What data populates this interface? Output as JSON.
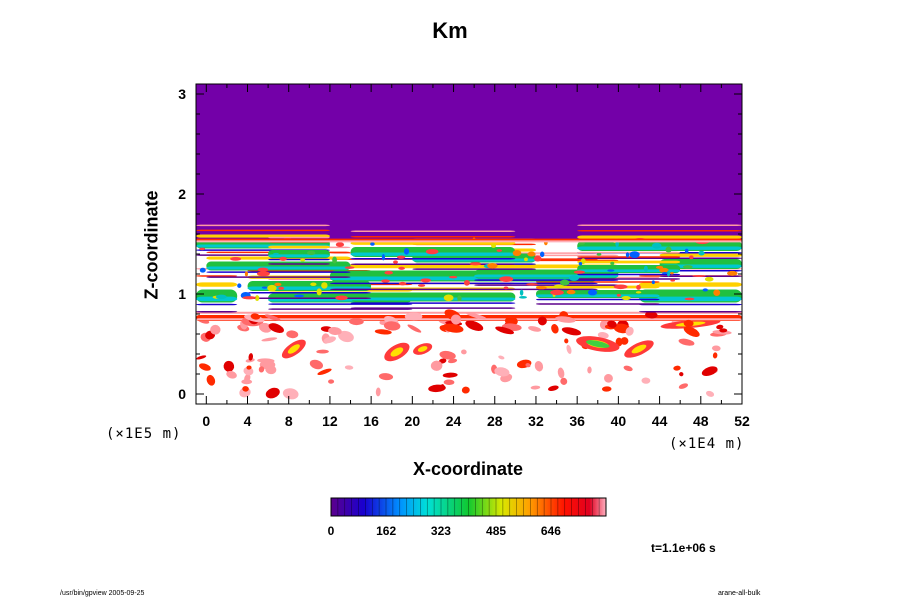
{
  "chart_data": {
    "type": "heatmap",
    "title": "Km",
    "xlabel": "X-coordinate",
    "ylabel": "Z-coordinate",
    "x_scale_note": "(×1E4 m)",
    "y_scale_note": "(×1E5 m)",
    "xlim": [
      -1,
      52
    ],
    "ylim": [
      -0.1,
      3.1
    ],
    "x_ticks": [
      "0",
      "4",
      "8",
      "12",
      "16",
      "20",
      "24",
      "28",
      "32",
      "36",
      "40",
      "44",
      "48",
      "52"
    ],
    "y_ticks": [
      "0",
      "1",
      "2",
      "3"
    ],
    "colorbar": {
      "tick_labels": [
        "0",
        "162",
        "323",
        "485",
        "646"
      ],
      "tick_values": [
        0,
        162,
        323,
        485,
        646
      ],
      "range": [
        0,
        808
      ]
    },
    "regions": {
      "upper_uniform_value": 0,
      "upper_boundary_z": 1.55,
      "description_levels": "high values concentrated in bands near z≈0.95–1.55 and patches near z≈0.3–0.8"
    },
    "time_label": "t=1.1e+06 s"
  },
  "footer": {
    "left": "/usr/bin/gpview 2005-09-25",
    "right": "arane-all-bulk"
  },
  "colors": {
    "uniform_region": "#7300a8",
    "background": "#ffffff"
  }
}
